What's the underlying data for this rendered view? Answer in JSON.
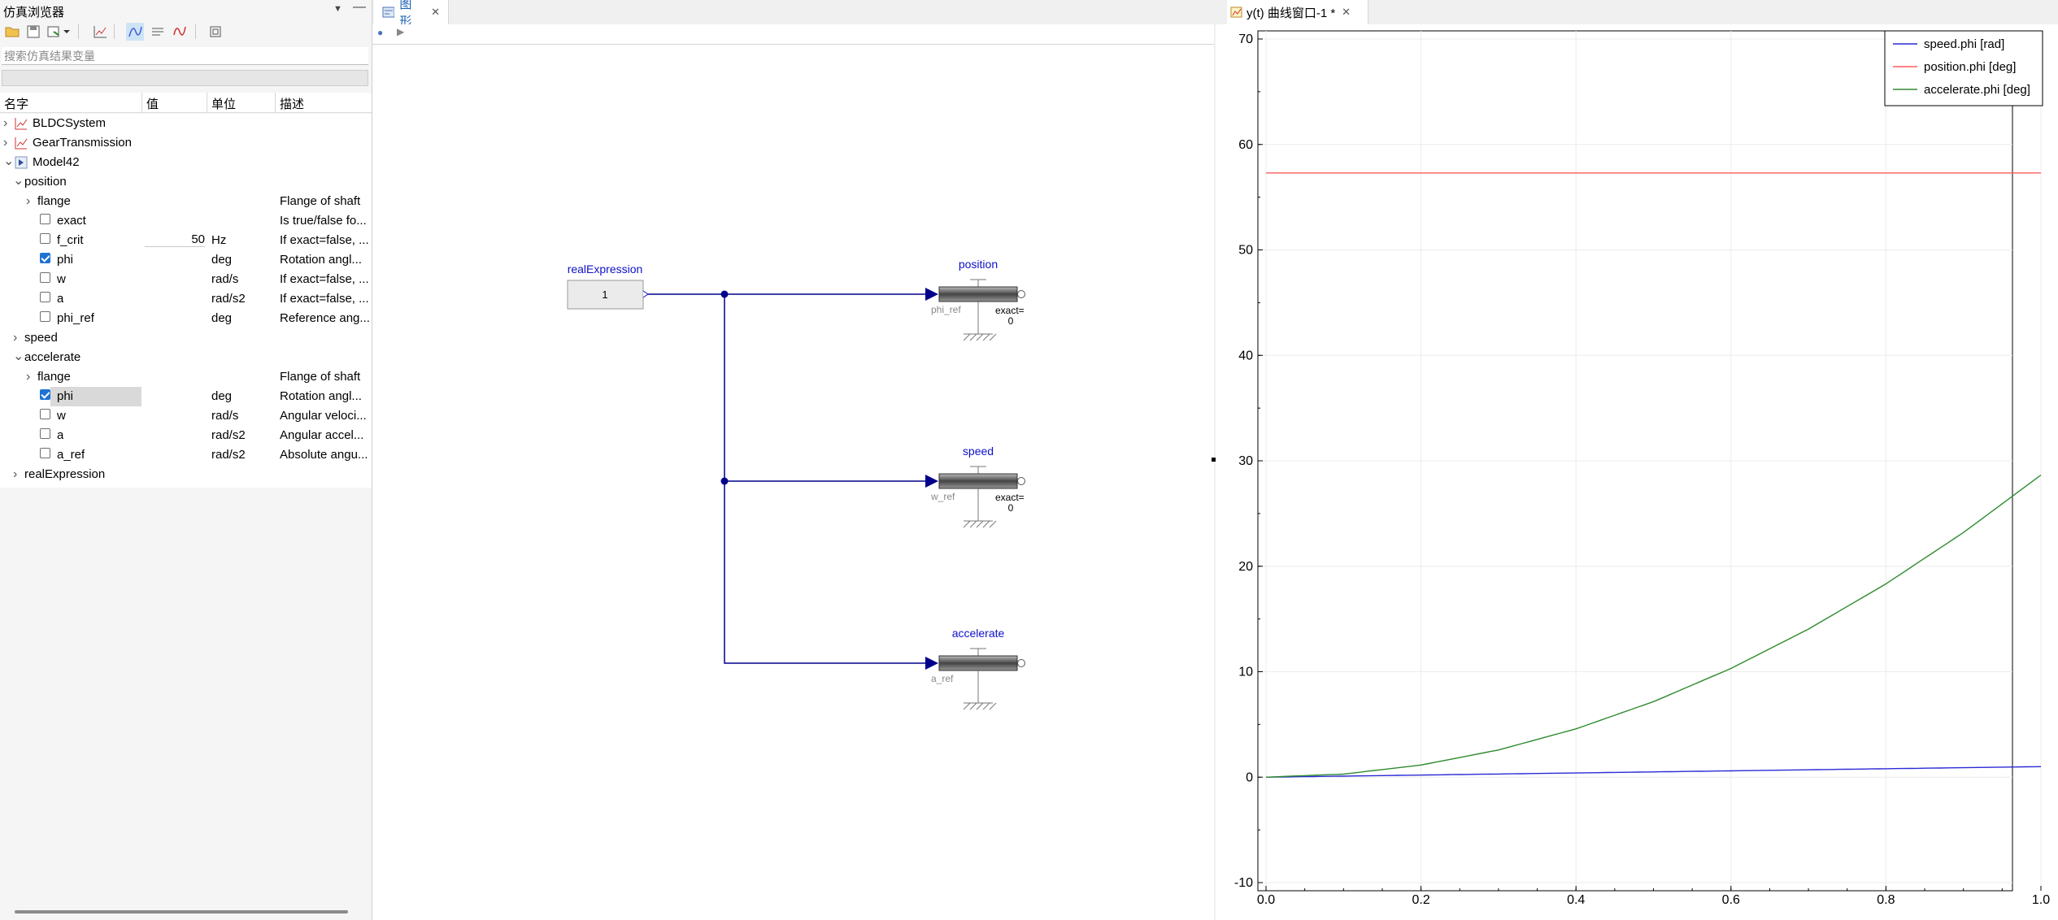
{
  "left_panel": {
    "title": "仿真浏览器",
    "search_placeholder": "搜索仿真结果变量",
    "columns": {
      "name": "名字",
      "value": "值",
      "unit": "单位",
      "desc": "描述"
    },
    "rows": [
      {
        "label": "BLDCSystem",
        "indent": 0,
        "expander": "›",
        "icon": "plot-icon"
      },
      {
        "label": "GearTransmission",
        "indent": 0,
        "expander": "›",
        "icon": "plot-icon"
      },
      {
        "label": "Model42",
        "indent": 0,
        "expander": "⌄",
        "icon": "model-icon"
      },
      {
        "label": "position",
        "indent": 1,
        "expander": "⌄"
      },
      {
        "label": "flange",
        "indent": 2,
        "expander": "›",
        "desc": "Flange of shaft"
      },
      {
        "label": "exact",
        "indent": 2,
        "checkbox": false,
        "desc": "Is true/false fo..."
      },
      {
        "label": "f_crit",
        "indent": 2,
        "checkbox": false,
        "value": "50",
        "unit": "Hz",
        "desc": "If exact=false, ..."
      },
      {
        "label": "phi",
        "indent": 2,
        "checkbox": true,
        "unit": "deg",
        "desc": "Rotation angl..."
      },
      {
        "label": "w",
        "indent": 2,
        "checkbox": false,
        "unit": "rad/s",
        "desc": "If exact=false, ..."
      },
      {
        "label": "a",
        "indent": 2,
        "checkbox": false,
        "unit": "rad/s2",
        "desc": "If exact=false, ..."
      },
      {
        "label": "phi_ref",
        "indent": 2,
        "checkbox": false,
        "unit": "deg",
        "desc": "Reference ang..."
      },
      {
        "label": "speed",
        "indent": 1,
        "expander": "›"
      },
      {
        "label": "accelerate",
        "indent": 1,
        "expander": "⌄"
      },
      {
        "label": "flange",
        "indent": 2,
        "expander": "›",
        "desc": "Flange of shaft"
      },
      {
        "label": "phi",
        "indent": 2,
        "checkbox": true,
        "unit": "deg",
        "desc": "Rotation angl...",
        "selected": true
      },
      {
        "label": "w",
        "indent": 2,
        "checkbox": false,
        "unit": "rad/s",
        "desc": "Angular veloci..."
      },
      {
        "label": "a",
        "indent": 2,
        "checkbox": false,
        "unit": "rad/s2",
        "desc": "Angular accel..."
      },
      {
        "label": "a_ref",
        "indent": 2,
        "checkbox": false,
        "unit": "rad/s2",
        "desc": "Absolute angu..."
      },
      {
        "label": "realExpression",
        "indent": 1,
        "expander": "›"
      }
    ]
  },
  "diagram_tab": {
    "label": "图形"
  },
  "diagram": {
    "source": {
      "name": "realExpression",
      "value": "1"
    },
    "blocks": [
      {
        "name": "position",
        "ref_label": "phi_ref",
        "exact_label": "exact=",
        "exact_value": "0"
      },
      {
        "name": "speed",
        "ref_label": "w_ref",
        "exact_label": "exact=",
        "exact_value": "0"
      },
      {
        "name": "accelerate",
        "ref_label": "a_ref"
      }
    ]
  },
  "plot_tab": {
    "label": "y(t) 曲线窗口-1 *"
  },
  "colors": {
    "speed": "#2a2ad6",
    "position": "#ff5c5c",
    "accelerate": "#2e8b2e",
    "diagram_blue": "#1010c8",
    "wire": "#00008b"
  },
  "chart_data": {
    "type": "line",
    "xlim": [
      0,
      1
    ],
    "ylim": [
      -10,
      70
    ],
    "x_ticks": [
      "0.0",
      "0.2",
      "0.4",
      "0.6",
      "0.8",
      "1.0"
    ],
    "y_ticks": [
      "-10",
      "0",
      "10",
      "20",
      "30",
      "40",
      "50",
      "60",
      "70"
    ],
    "grid": true,
    "legend_position": "top-right",
    "series": [
      {
        "name": "speed.phi [rad]",
        "color": "#2a2ad6",
        "x": [
          0,
          0.1,
          0.2,
          0.3,
          0.4,
          0.5,
          0.6,
          0.7,
          0.8,
          0.9,
          1.0
        ],
        "y": [
          0,
          0.1,
          0.2,
          0.3,
          0.4,
          0.5,
          0.6,
          0.7,
          0.8,
          0.9,
          1.0
        ]
      },
      {
        "name": "position.phi [deg]",
        "color": "#ff5c5c",
        "x": [
          0,
          1.0
        ],
        "y": [
          57.3,
          57.3
        ]
      },
      {
        "name": "accelerate.phi [deg]",
        "color": "#2e8b2e",
        "x": [
          0,
          0.1,
          0.2,
          0.3,
          0.4,
          0.5,
          0.6,
          0.7,
          0.8,
          0.9,
          1.0
        ],
        "y": [
          0,
          0.29,
          1.15,
          2.58,
          4.58,
          7.16,
          10.31,
          14.04,
          18.33,
          23.2,
          28.65
        ]
      }
    ]
  }
}
